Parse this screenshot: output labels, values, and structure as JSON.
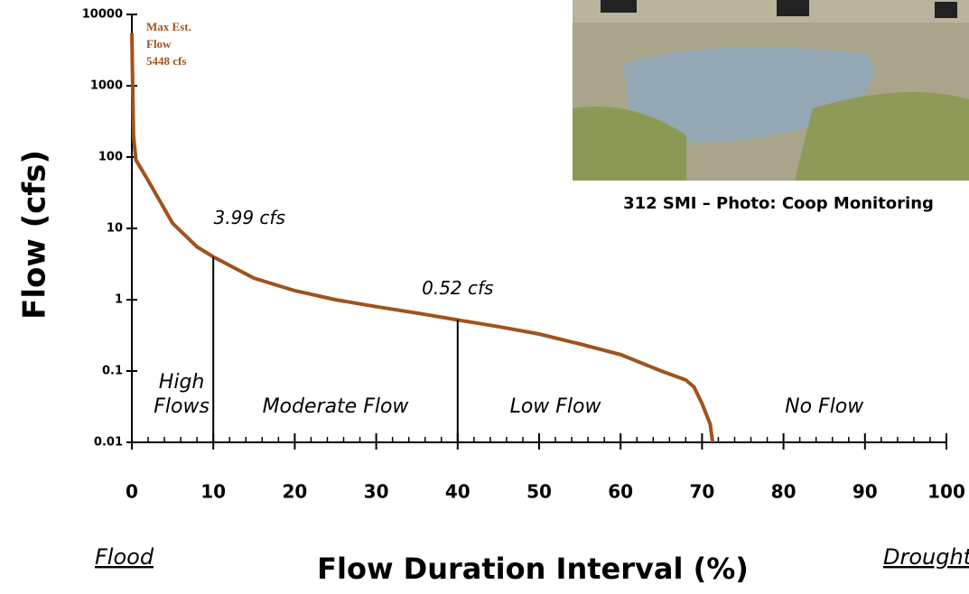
{
  "chart_data": {
    "type": "line",
    "y_label": "Flow (cfs)",
    "x_label": "Flow Duration Interval (%)",
    "left_note": "Flood",
    "right_note": "Drought",
    "photo_caption": "312 SMI – Photo: Coop Monitoring",
    "max_note": [
      "Max Est.",
      "Flow",
      "5448 cfs"
    ],
    "x": [
      0,
      0.2,
      0.5,
      2,
      5,
      8,
      10,
      15,
      20,
      25,
      30,
      35,
      40,
      45,
      50,
      55,
      60,
      65,
      68,
      69,
      70,
      71,
      71.3
    ],
    "series": [
      {
        "name": "Flow",
        "color": "#a0521e",
        "values": [
          5448,
          200,
          91,
          47,
          11.8,
          5.5,
          3.99,
          2,
          1.34,
          1.0,
          0.8,
          0.65,
          0.52,
          0.42,
          0.33,
          0.24,
          0.17,
          0.1,
          0.075,
          0.06,
          0.035,
          0.018,
          0.01
        ]
      }
    ],
    "reference_points": [
      {
        "x": 10,
        "y": 3.99,
        "label": "3.99  cfs"
      },
      {
        "x": 40,
        "y": 0.52,
        "label": "0.52 cfs"
      }
    ],
    "zones": [
      {
        "x": 5,
        "label": [
          "High",
          "Flows"
        ]
      },
      {
        "x": 25,
        "label": [
          "Moderate Flow"
        ]
      },
      {
        "x": 52,
        "label": [
          "Low Flow"
        ]
      },
      {
        "x": 85,
        "label": [
          "No Flow"
        ]
      }
    ],
    "xlim": [
      0,
      100
    ],
    "xticks": [
      0,
      10,
      20,
      30,
      40,
      50,
      60,
      70,
      80,
      90,
      100
    ],
    "ylim": [
      0.01,
      10000
    ],
    "yticks": [
      0.01,
      0.1,
      1,
      10,
      100,
      1000,
      10000
    ],
    "log_y": true
  }
}
